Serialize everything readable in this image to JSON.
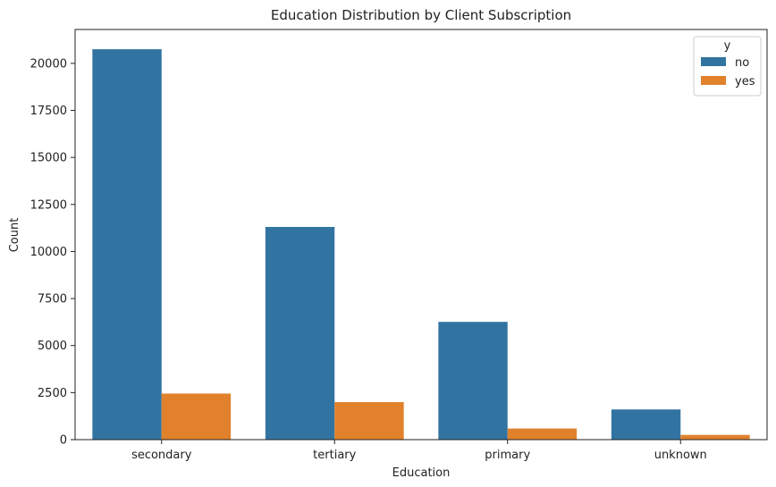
{
  "chart_data": {
    "type": "bar",
    "title": "Education Distribution by Client Subscription",
    "xlabel": "Education",
    "ylabel": "Count",
    "categories": [
      "secondary",
      "tertiary",
      "primary",
      "unknown"
    ],
    "series": [
      {
        "name": "no",
        "color": "#3274a1",
        "values": [
          20752,
          11305,
          6260,
          1605
        ]
      },
      {
        "name": "yes",
        "color": "#e1812c",
        "values": [
          2450,
          1996,
          591,
          252
        ]
      }
    ],
    "ylim": [
      0,
      21800
    ],
    "yticks": [
      0,
      2500,
      5000,
      7500,
      10000,
      12500,
      15000,
      17500,
      20000
    ],
    "grid": false,
    "legend": {
      "title": "y",
      "placement": "top-right"
    }
  }
}
